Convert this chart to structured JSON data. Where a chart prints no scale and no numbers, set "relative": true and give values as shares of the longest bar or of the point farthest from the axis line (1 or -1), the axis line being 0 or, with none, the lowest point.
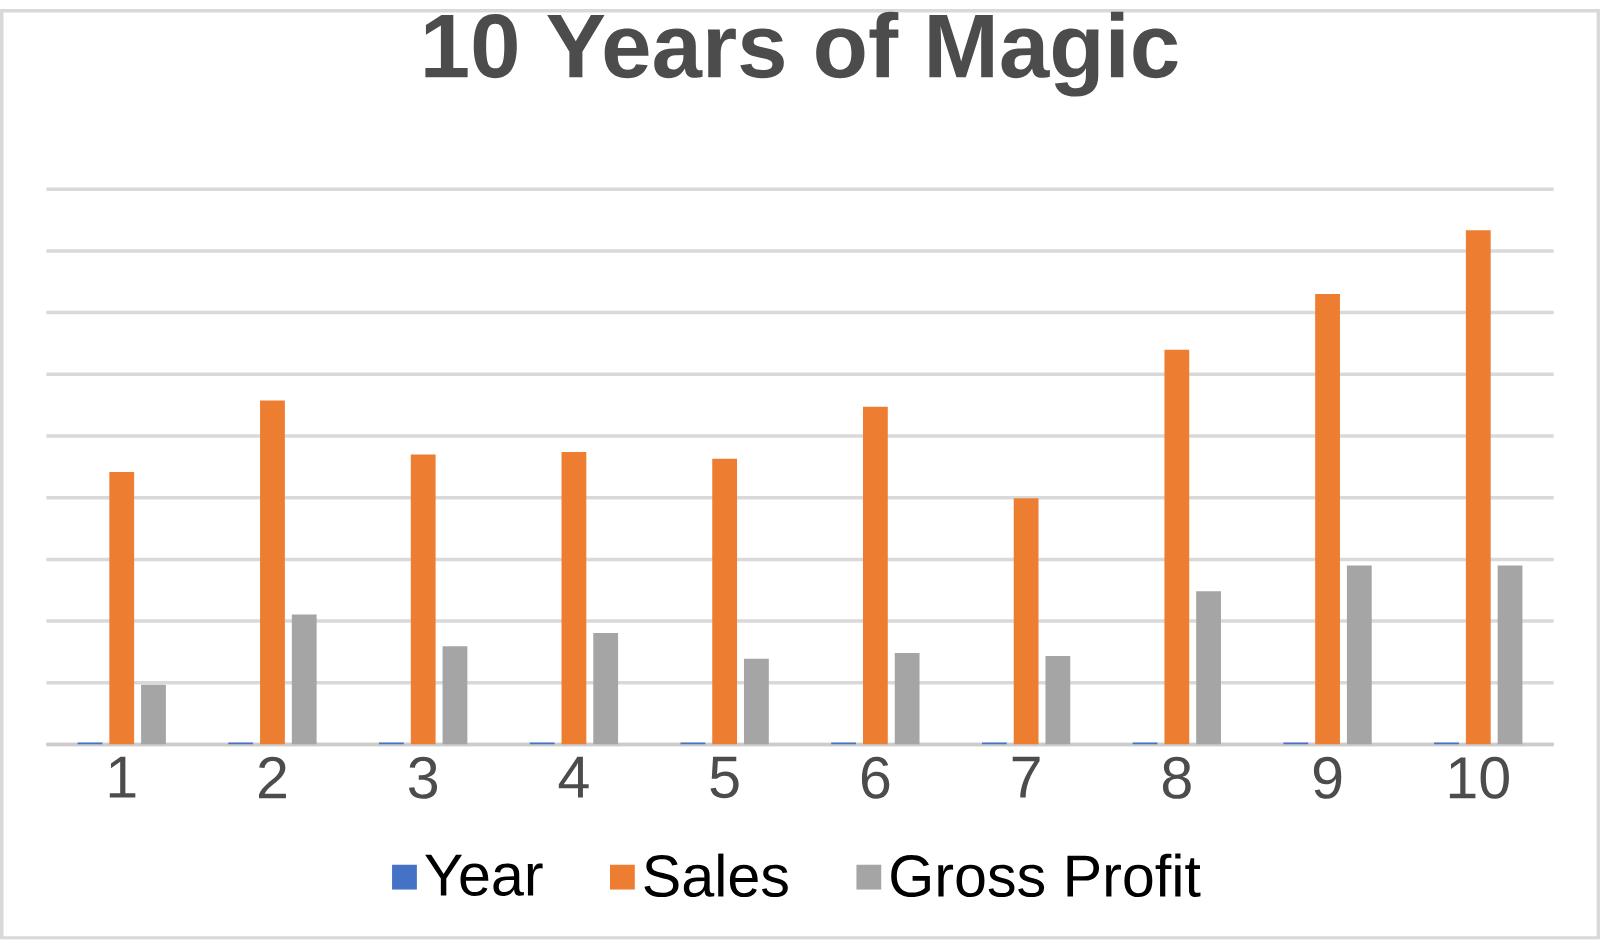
{
  "chart_data": {
    "type": "bar",
    "title": "10 Years of Magic",
    "relative": true,
    "grid": "y",
    "legend": "bottom",
    "categories": [
      "1",
      "2",
      "3",
      "4",
      "5",
      "6",
      "7",
      "8",
      "9",
      "10"
    ],
    "series": [
      {
        "name": "Year",
        "color": "#4472c4",
        "values": [
          0.004,
          0.004,
          0.004,
          0.004,
          0.004,
          0.004,
          0.004,
          0.004,
          0.004,
          0.004
        ]
      },
      {
        "name": "Sales",
        "color": "#ed7d31",
        "values": [
          0.53,
          0.669,
          0.564,
          0.569,
          0.556,
          0.657,
          0.479,
          0.768,
          0.876,
          1
        ]
      },
      {
        "name": "Gross Profit",
        "color": "#a5a5a5",
        "values": [
          0.116,
          0.253,
          0.191,
          0.217,
          0.167,
          0.178,
          0.172,
          0.298,
          0.348,
          0.348
        ]
      }
    ]
  }
}
